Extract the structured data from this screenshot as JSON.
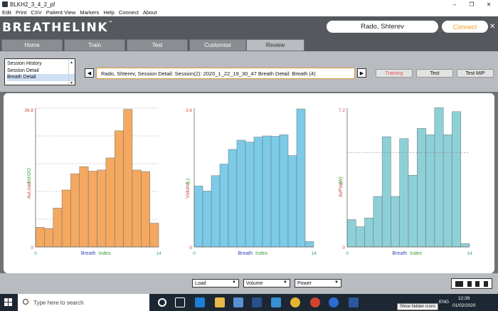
{
  "window": {
    "title": "BLKH2_3_4_2_pf",
    "controls": [
      "–",
      "❐",
      "✕"
    ]
  },
  "menu": [
    "Edit",
    "Print",
    "CSV",
    "Patient View",
    "Markers",
    "Help",
    "Connect",
    "About"
  ],
  "header": {
    "logo": "BREATHELINK",
    "logo_mark": "™",
    "user": "Rado, Shterev",
    "connect": "Connect",
    "close": "✕"
  },
  "tabs": [
    "Home",
    "Train",
    "Test",
    "Customise",
    "Review"
  ],
  "active_tab": "Review",
  "nav_list": {
    "items": [
      "Session History",
      "Session Detail",
      "Breath Detail"
    ],
    "selected": "Breath Detail"
  },
  "session_text": "Rado, Shterev, Session Detail: Session(2): 2020_1_22_19_30_47 Breath Detail: Breath (4)",
  "nav_prev": "◀",
  "nav_next": "▶",
  "buttons": {
    "training": "Training",
    "test": "Test",
    "test_mip": "Test MIP"
  },
  "selectors": {
    "load": "Load",
    "volume": "Volume",
    "power": "Power"
  },
  "chart_data": [
    {
      "type": "bar",
      "ylabel_left": "AvLoad",
      "ylabel_right": "cmH2O",
      "xlabel_left": "Breath",
      "xlabel_right": "Index",
      "ylim": [
        0,
        36.8
      ],
      "xlim": [
        0,
        14
      ],
      "y_tick_labels": [
        "36.8",
        "0"
      ],
      "x_tick_labels": [
        "0",
        "14"
      ],
      "color": "#f4a860",
      "values": [
        5.2,
        4.9,
        10.3,
        15.1,
        19.4,
        21.3,
        20.1,
        20.4,
        23.6,
        30.8,
        36.5,
        20.4,
        20.0,
        6.3
      ]
    },
    {
      "type": "bar",
      "ylabel_left": "Volume",
      "ylabel_right": "(L)",
      "xlabel_left": "Breath",
      "xlabel_right": "Index",
      "ylim": [
        0,
        3.6
      ],
      "xlim": [
        0,
        14
      ],
      "y_tick_labels": [
        "3.6",
        "0"
      ],
      "x_tick_labels": [
        "0",
        "14"
      ],
      "color": "#7ccbe8",
      "values": [
        1.58,
        1.45,
        1.85,
        2.15,
        2.53,
        2.77,
        2.72,
        2.85,
        2.88,
        2.87,
        2.91,
        2.37,
        3.58,
        0.14
      ]
    },
    {
      "type": "bar",
      "ylabel_left": "AvPow",
      "ylabel_right": "(W)",
      "xlabel_left": "Breath",
      "xlabel_right": "Index",
      "ylim": [
        0,
        7.2
      ],
      "xlim": [
        0,
        14
      ],
      "y_tick_labels": [
        "7.2",
        "0"
      ],
      "x_tick_labels": [
        "0",
        "14"
      ],
      "reference_line": 4.9,
      "color": "#8ed0d8",
      "values": [
        1.42,
        1.05,
        1.5,
        2.62,
        5.72,
        2.62,
        5.62,
        3.72,
        6.15,
        5.82,
        7.22,
        5.82,
        7.02,
        0.17
      ]
    }
  ],
  "taskbar": {
    "search_placeholder": "Type here to search",
    "time": "12:39",
    "date": "01/02/2020",
    "lang": "ENG",
    "tooltip": "Show hidden icons"
  }
}
